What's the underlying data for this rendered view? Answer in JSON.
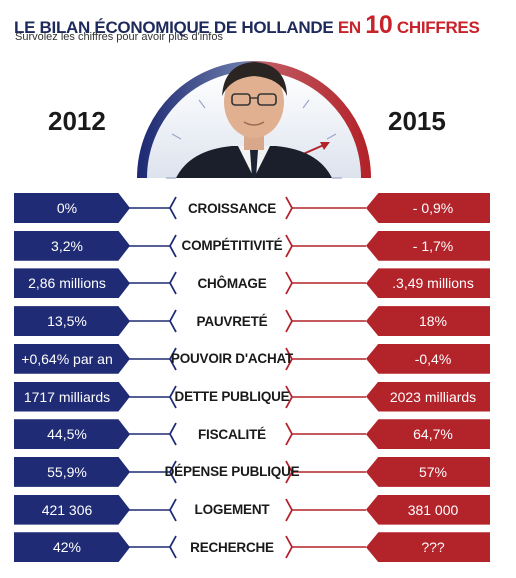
{
  "header": {
    "title_part1": "LE BILAN ÉCONOMIQUE DE ",
    "title_part2": "HOLLANDE",
    "title_part3": " EN ",
    "title_part4": "10",
    "title_part5": " CHIFFRES",
    "subtitle": "Survolez les chiffres pour avoir plus d'infos"
  },
  "years": {
    "left": "2012",
    "right": "2015"
  },
  "colors": {
    "navy": "#1f2b74",
    "red": "#b3232a",
    "title_navy": "#1f2a5c",
    "title_red": "#c8222b"
  },
  "rows": [
    {
      "label": "CROISSANCE",
      "left": "0%",
      "right": "- 0,9%"
    },
    {
      "label": "COMPÉTITIVITÉ",
      "left": "3,2%",
      "right": "- 1,7%"
    },
    {
      "label": "CHÔMAGE",
      "left": "2,86 millions",
      "right": ".3,49 millions"
    },
    {
      "label": "PAUVRETÉ",
      "left": "13,5%",
      "right": "18%"
    },
    {
      "label": "POUVOIR D'ACHAT",
      "left": "+0,64% par an",
      "right": "-0,4%"
    },
    {
      "label": "DETTE PUBLIQUE",
      "left": "1717 milliards",
      "right": "2023 milliards"
    },
    {
      "label": "FISCALITÉ",
      "left": "44,5%",
      "right": "64,7%"
    },
    {
      "label": "DÉPENSE PUBLIQUE",
      "left": "55,9%",
      "right": "57%"
    },
    {
      "label": "LOGEMENT",
      "left": "421 306",
      "right": "381 000"
    },
    {
      "label": "RECHERCHE",
      "left": "42%",
      "right": "???"
    }
  ]
}
